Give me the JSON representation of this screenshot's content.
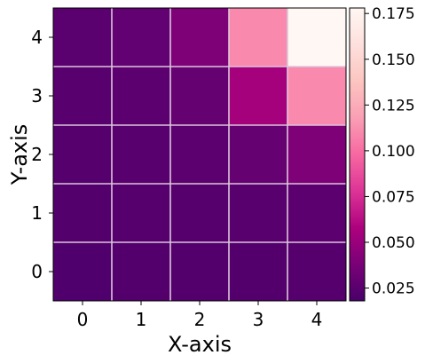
{
  "chart_data": {
    "type": "heatmap",
    "title": "",
    "xlabel": "X-axis",
    "ylabel": "Y-axis",
    "x": [
      0,
      1,
      2,
      3,
      4
    ],
    "y": [
      0,
      1,
      2,
      3,
      4
    ],
    "values": [
      [
        0.021,
        0.022,
        0.022,
        0.022,
        0.023
      ],
      [
        0.022,
        0.023,
        0.023,
        0.024,
        0.026
      ],
      [
        0.023,
        0.024,
        0.026,
        0.03,
        0.04
      ],
      [
        0.024,
        0.026,
        0.03,
        0.055,
        0.11
      ],
      [
        0.025,
        0.028,
        0.04,
        0.11,
        0.178
      ]
    ],
    "value_range": [
      0.018,
      0.178
    ],
    "colormap": "RdPu_r",
    "colorbar_ticks": [
      "0.025",
      "0.050",
      "0.075",
      "0.100",
      "0.125",
      "0.150",
      "0.175"
    ],
    "colorbar_tick_values": [
      0.025,
      0.05,
      0.075,
      0.1,
      0.125,
      0.15,
      0.175
    ],
    "grid": true,
    "grid_color": "#dcc6dc"
  }
}
